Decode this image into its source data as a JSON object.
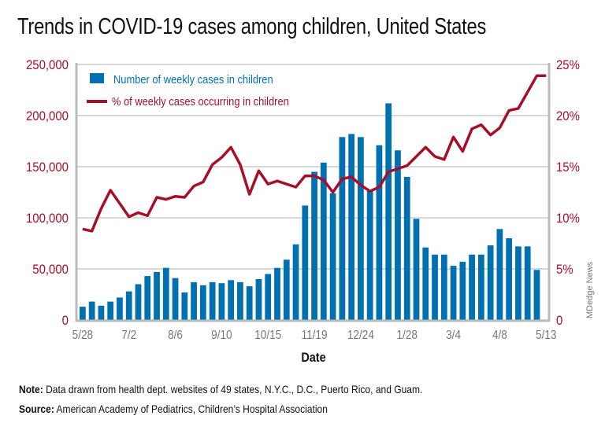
{
  "title": "Trends in COVID-19 cases among children, United States",
  "chart_data": {
    "type": "bar+line",
    "title": "Trends in COVID-19 cases among children, United States",
    "xlabel": "Date",
    "ylabel_left": "",
    "ylabel_right": "",
    "x_tick_labels": [
      "5/28",
      "7/2",
      "8/6",
      "9/10",
      "10/15",
      "11/19",
      "12/24",
      "1/28",
      "3/4",
      "4/8",
      "5/13"
    ],
    "y_left": {
      "ticks": [
        "0",
        "50,000",
        "100,000",
        "150,000",
        "200,000",
        "250,000"
      ],
      "range": [
        0,
        250000
      ]
    },
    "y_right": {
      "ticks": [
        "0",
        "5%",
        "10%",
        "15%",
        "20%",
        "25%"
      ],
      "range": [
        0,
        25
      ]
    },
    "grid": true,
    "legend_position": "top-left",
    "series": [
      {
        "name": "Number of weekly cases in children",
        "type": "bar",
        "color": "#0070b0",
        "axis": "left",
        "values": [
          13000,
          18000,
          14000,
          18000,
          22000,
          28000,
          35000,
          43000,
          47000,
          51000,
          41000,
          27000,
          37000,
          34000,
          37000,
          36000,
          39000,
          37000,
          33000,
          40000,
          45000,
          51000,
          59000,
          74000,
          112000,
          145000,
          154000,
          124000,
          179000,
          182000,
          179000,
          126000,
          171000,
          212000,
          166000,
          140000,
          99000,
          71000,
          64000,
          64000,
          53000,
          57000,
          64000,
          64000,
          73000,
          89000,
          80000,
          72000,
          72000,
          49000,
          0
        ]
      },
      {
        "name": "% of weekly cases occurring in children",
        "type": "line",
        "color": "#a50f2a",
        "axis": "right",
        "values": [
          8.9,
          8.7,
          10.9,
          12.7,
          11.4,
          10.1,
          10.5,
          10.2,
          12.0,
          11.8,
          12.1,
          12.0,
          13.1,
          13.5,
          15.2,
          15.9,
          16.9,
          15.2,
          12.3,
          14.6,
          13.3,
          13.6,
          13.3,
          13.0,
          14.1,
          14.1,
          13.7,
          12.5,
          13.8,
          14.0,
          13.2,
          12.6,
          13.0,
          14.5,
          14.8,
          15.1,
          16.0,
          16.9,
          16.0,
          15.7,
          17.9,
          16.5,
          18.7,
          19.1,
          18.1,
          18.8,
          20.5,
          20.7,
          22.3,
          23.9,
          23.9
        ]
      }
    ],
    "x_start": "5/28",
    "x_end": "5/13"
  },
  "legend": {
    "bar_label": "Number of weekly cases in children",
    "line_label": "% of weekly cases occurring in children"
  },
  "credit": "MDedge News",
  "footer": {
    "note_label": "Note:",
    "note_text": " Data drawn from health dept. websites of 49 states, N.Y.C., D.C., Puerto Rico, and Guam.",
    "source_label": "Source:",
    "source_text": " American Academy of Pediatrics, Children’s Hospital Association"
  },
  "colors": {
    "bar": "#0070b0",
    "line": "#a50f2a",
    "axis_text": "#a50f2a",
    "tick_text": "#777777",
    "grid": "#cccccc"
  }
}
